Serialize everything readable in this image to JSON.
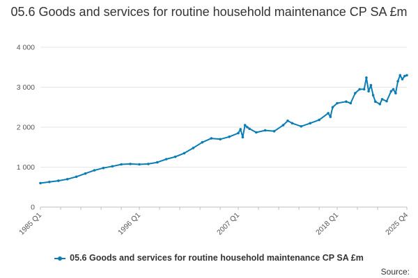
{
  "chart_data": {
    "type": "line",
    "title": "05.6 Goods and services for routine household maintenance CP SA £m",
    "xlabel": "",
    "ylabel": "",
    "ylim": [
      0,
      4000
    ],
    "yticks": [
      0,
      1000,
      2000,
      3000,
      4000
    ],
    "ytick_labels": [
      "0",
      "1 000",
      "2 000",
      "3 000",
      "4 000"
    ],
    "xtick_labels": [
      "1985 Q1",
      "1996 Q1",
      "2007 Q1",
      "2018 Q1",
      "2025 Q4"
    ],
    "grid": true,
    "legend_position": "bottom",
    "series": [
      {
        "name": "05.6 Goods and services for routine household maintenance CP SA £m",
        "color": "#0b7cb4",
        "points": [
          [
            "1985 Q1",
            600
          ],
          [
            "1986 Q1",
            630
          ],
          [
            "1987 Q1",
            660
          ],
          [
            "1988 Q1",
            700
          ],
          [
            "1989 Q1",
            760
          ],
          [
            "1990 Q1",
            840
          ],
          [
            "1991 Q1",
            920
          ],
          [
            "1992 Q1",
            980
          ],
          [
            "1993 Q1",
            1020
          ],
          [
            "1994 Q1",
            1070
          ],
          [
            "1995 Q1",
            1080
          ],
          [
            "1996 Q1",
            1070
          ],
          [
            "1997 Q1",
            1080
          ],
          [
            "1998 Q1",
            1120
          ],
          [
            "1999 Q1",
            1200
          ],
          [
            "2000 Q1",
            1260
          ],
          [
            "2001 Q1",
            1350
          ],
          [
            "2002 Q1",
            1480
          ],
          [
            "2003 Q1",
            1620
          ],
          [
            "2004 Q1",
            1720
          ],
          [
            "2005 Q1",
            1700
          ],
          [
            "2006 Q1",
            1760
          ],
          [
            "2007 Q1",
            1850
          ],
          [
            "2007 Q2",
            1950
          ],
          [
            "2007 Q3",
            1750
          ],
          [
            "2007 Q4",
            2050
          ],
          [
            "2008 Q1",
            2000
          ],
          [
            "2008 Q2",
            1960
          ],
          [
            "2009 Q1",
            1870
          ],
          [
            "2010 Q1",
            1920
          ],
          [
            "2011 Q1",
            1900
          ],
          [
            "2012 Q1",
            2050
          ],
          [
            "2012 Q3",
            2160
          ],
          [
            "2013 Q1",
            2100
          ],
          [
            "2014 Q1",
            2020
          ],
          [
            "2015 Q1",
            2100
          ],
          [
            "2016 Q1",
            2180
          ],
          [
            "2017 Q1",
            2350
          ],
          [
            "2017 Q2",
            2260
          ],
          [
            "2017 Q3",
            2500
          ],
          [
            "2018 Q1",
            2600
          ],
          [
            "2019 Q1",
            2640
          ],
          [
            "2019 Q3",
            2600
          ],
          [
            "2020 Q1",
            2850
          ],
          [
            "2020 Q3",
            2950
          ],
          [
            "2021 Q1",
            2950
          ],
          [
            "2021 Q2",
            3240
          ],
          [
            "2021 Q3",
            2900
          ],
          [
            "2021 Q4",
            3050
          ],
          [
            "2022 Q1",
            2800
          ],
          [
            "2022 Q2",
            2640
          ],
          [
            "2022 Q4",
            2580
          ],
          [
            "2023 Q1",
            2700
          ],
          [
            "2023 Q3",
            2650
          ],
          [
            "2024 Q1",
            2900
          ],
          [
            "2024 Q2",
            2950
          ],
          [
            "2024 Q3",
            2850
          ],
          [
            "2024 Q4",
            3150
          ],
          [
            "2025 Q1",
            3300
          ],
          [
            "2025 Q2",
            3200
          ],
          [
            "2025 Q3",
            3280
          ],
          [
            "2025 Q4",
            3300
          ]
        ]
      }
    ],
    "source_label": "Source:"
  }
}
